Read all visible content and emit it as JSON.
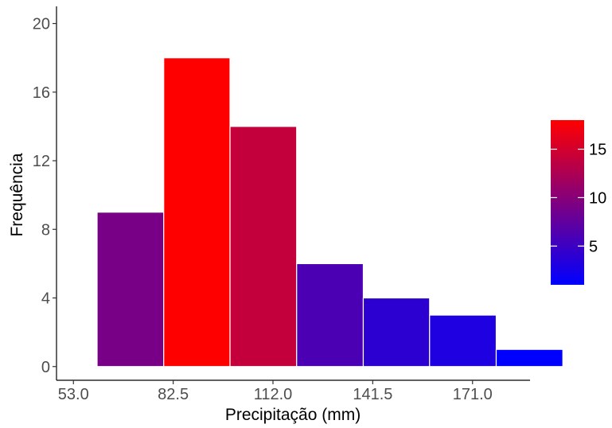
{
  "chart_data": {
    "type": "bar",
    "subtype": "histogram",
    "xlabel": "Precipitação (mm)",
    "ylabel": "Frequência",
    "x_ticks": [
      53.0,
      82.5,
      112.0,
      141.5,
      171.0
    ],
    "x_tick_labels": [
      "53.0",
      "82.5",
      "112.0",
      "141.5",
      "171.0"
    ],
    "y_ticks": [
      0,
      4,
      8,
      12,
      16,
      20
    ],
    "xlim": [
      48,
      188
    ],
    "ylim": [
      -0.8,
      21
    ],
    "bins": [
      {
        "start": 60.0,
        "end": 79.7,
        "count": 9
      },
      {
        "start": 79.7,
        "end": 99.3,
        "count": 18
      },
      {
        "start": 99.3,
        "end": 119.0,
        "count": 14
      },
      {
        "start": 119.0,
        "end": 138.7,
        "count": 6
      },
      {
        "start": 138.7,
        "end": 158.3,
        "count": 4
      },
      {
        "start": 158.3,
        "end": 178.0,
        "count": 3
      },
      {
        "start": 178.0,
        "end": 197.7,
        "count": 1
      }
    ],
    "grid": false,
    "legend": {
      "position": "right",
      "type": "colorbar",
      "breaks": [
        5,
        10,
        15
      ],
      "range": [
        1,
        18
      ],
      "low_color": "#0000ff",
      "high_color": "#ff0000"
    }
  }
}
